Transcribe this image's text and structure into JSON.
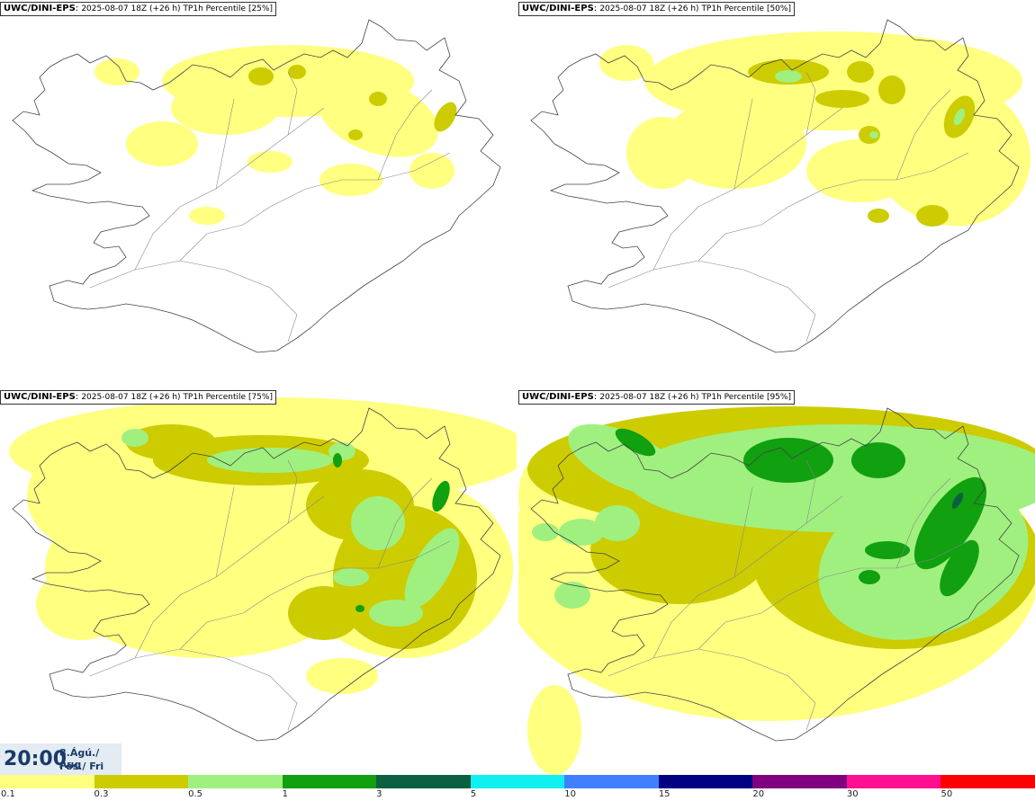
{
  "panels": [
    {
      "model": "UWC/DINI-EPS",
      "run": "2025-08-07 18Z (+26 h)",
      "param": "TP1h Percentile",
      "percentile": "[25%]",
      "level": 0.25
    },
    {
      "model": "UWC/DINI-EPS",
      "run": "2025-08-07 18Z (+26 h)",
      "param": "TP1h Percentile",
      "percentile": "[50%]",
      "level": 0.5
    },
    {
      "model": "UWC/DINI-EPS",
      "run": "2025-08-07 18Z (+26 h)",
      "param": "TP1h Percentile",
      "percentile": "[75%]",
      "level": 0.75
    },
    {
      "model": "UWC/DINI-EPS",
      "run": "2025-08-07 18Z (+26 h)",
      "param": "TP1h Percentile",
      "percentile": "[95%]",
      "level": 0.95
    }
  ],
  "time": {
    "clock": "20:00",
    "date_line": "8.Ágú./ Aug",
    "day_line": "Fös./ Fri"
  },
  "legend": {
    "colors": [
      "#ffff80",
      "#cccc00",
      "#a0f080",
      "#10a010",
      "#0a6040",
      "#10f0f0",
      "#4080ff",
      "#000080",
      "#800080",
      "#ff1090",
      "#ff0000"
    ],
    "ticks": [
      "0.1",
      "0.3",
      "0.5",
      "1",
      "3",
      "5",
      "10",
      "15",
      "20",
      "30",
      "50"
    ]
  }
}
